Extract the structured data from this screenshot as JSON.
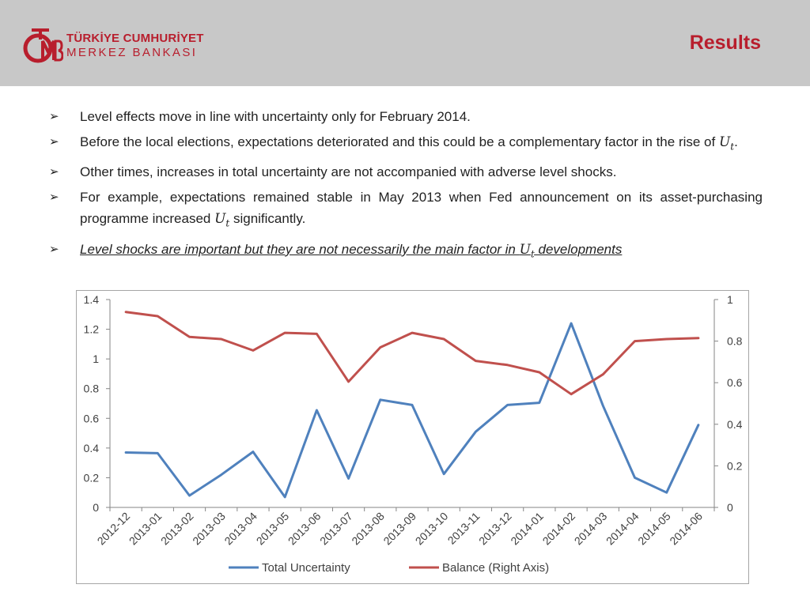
{
  "header": {
    "logo_line1": "TÜRKİYE CUMHURİYET",
    "logo_line2": "MERKEZ BANKASI",
    "title": "Results"
  },
  "bullets": [
    {
      "text": "Level effects move in line with uncertainty only for February 2014."
    },
    {
      "pre": "Before the local elections, expectations deteriorated and this could be a complementary factor in the rise of ",
      "math": "Ut",
      "post": "."
    },
    {
      "text": "Other times, increases in total uncertainty are not accompanied with adverse level shocks."
    },
    {
      "pre": "For example, expectations remained stable in May 2013 when Fed announcement on its asset-purchasing programme increased ",
      "math": "Ut",
      "post": " significantly."
    },
    {
      "pre": "Level shocks are important but they are not necessarily the main factor in ",
      "math": "Ut",
      "post": " developments"
    }
  ],
  "colors": {
    "header_bg": "#c8c8c8",
    "accent": "#b81e2d",
    "series1": "#4f81bd",
    "series2": "#c0504d"
  },
  "chart_data": {
    "type": "line",
    "categories": [
      "2012-12",
      "2013-01",
      "2013-02",
      "2013-03",
      "2013-04",
      "2013-05",
      "2013-06",
      "2013-07",
      "2013-08",
      "2013-09",
      "2013-10",
      "2013-11",
      "2013-12",
      "2014-01",
      "2014-02",
      "2014-03",
      "2014-04",
      "2014-05",
      "2014-06"
    ],
    "y_left": {
      "min": 0,
      "max": 1.4,
      "ticks": [
        "0",
        "0.2",
        "0.4",
        "0.6",
        "0.8",
        "1",
        "1.2",
        "1.4"
      ]
    },
    "y_right": {
      "min": 0,
      "max": 1,
      "ticks": [
        "0",
        "0.2",
        "0.4",
        "0.6",
        "0.8",
        "1"
      ]
    },
    "legend_position": "bottom",
    "grid": false,
    "series": [
      {
        "name": "Total Uncertainty",
        "axis": "left",
        "color": "#4f81bd",
        "values": [
          0.37,
          0.365,
          0.08,
          0.22,
          0.375,
          0.07,
          0.655,
          0.195,
          0.725,
          0.69,
          0.225,
          0.51,
          0.69,
          0.705,
          1.24,
          0.685,
          0.2,
          0.1,
          0.555
        ]
      },
      {
        "name": "Balance (Right Axis)",
        "axis": "right",
        "color": "#c0504d",
        "values": [
          0.94,
          0.92,
          0.82,
          0.81,
          0.755,
          0.84,
          0.835,
          0.605,
          0.77,
          0.84,
          0.81,
          0.705,
          0.685,
          0.65,
          0.545,
          0.64,
          0.8,
          0.81,
          0.815
        ]
      }
    ]
  }
}
